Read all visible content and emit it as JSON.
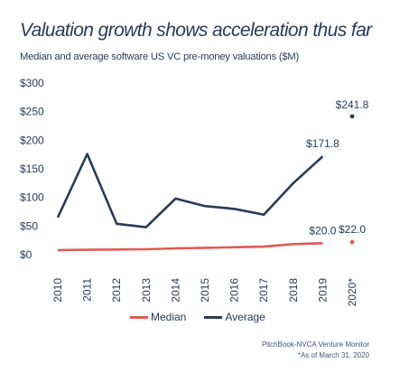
{
  "title": "Valuation growth shows acceleration thus far",
  "subtitle": "Median and average software US VC pre-money valuations ($M)",
  "legend": {
    "median_label": "Median",
    "average_label": "Average"
  },
  "source": {
    "line1": "PitchBook-NVCA Venture Monitor",
    "line2": "*As of March 31, 2020"
  },
  "colors": {
    "median": "#e05a55",
    "average": "#2b3a55",
    "text": "#2b3a55"
  },
  "chart_data": {
    "type": "line",
    "title": "Valuation growth shows acceleration thus far",
    "subtitle": "Median and average software US VC pre-money valuations ($M)",
    "categories": [
      "2010",
      "2011",
      "2012",
      "2013",
      "2014",
      "2015",
      "2016",
      "2017",
      "2018",
      "2019",
      "2020*"
    ],
    "ylim": [
      0,
      300
    ],
    "yticks": [
      0,
      50,
      100,
      150,
      200,
      250,
      300
    ],
    "ytick_labels": [
      "$0",
      "$50",
      "$100",
      "$150",
      "$200",
      "$250",
      "$300"
    ],
    "grid": false,
    "legend_position": "bottom",
    "series": [
      {
        "name": "Median",
        "color": "#e05a55",
        "values": [
          8,
          8.5,
          9,
          9.5,
          11,
          12,
          13,
          14,
          18.5,
          20.0,
          null
        ],
        "point": 22.0
      },
      {
        "name": "Average",
        "color": "#2b3a55",
        "values": [
          65,
          176,
          54,
          48,
          98,
          85,
          80,
          70,
          125,
          171.8,
          null
        ],
        "point": 241.8
      }
    ],
    "data_labels": [
      {
        "series": "Average",
        "category": "2019",
        "text": "$171.8"
      },
      {
        "series": "Average",
        "category": "2020*",
        "text": "$241.8"
      },
      {
        "series": "Median",
        "category": "2019",
        "text": "$20.0"
      },
      {
        "series": "Median",
        "category": "2020*",
        "text": "$22.0"
      }
    ]
  }
}
